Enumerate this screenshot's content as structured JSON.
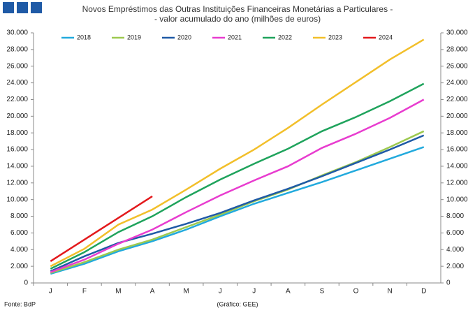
{
  "chart_data": {
    "type": "line",
    "title": "Novos Empréstimos das Outras Instituições Financeiras Monetárias a Particulares -",
    "subtitle": "- valor acumulado do ano (milhões de euros)",
    "categories": [
      "J",
      "F",
      "M",
      "A",
      "M",
      "J",
      "J",
      "A",
      "S",
      "O",
      "N",
      "D"
    ],
    "series": [
      {
        "name": "2018",
        "color": "#22aadd",
        "values": [
          1100,
          2300,
          3800,
          5000,
          6400,
          8000,
          9500,
          10800,
          12100,
          13500,
          14900,
          16300
        ]
      },
      {
        "name": "2019",
        "color": "#9dc94f",
        "values": [
          1200,
          2500,
          4000,
          5200,
          6700,
          8200,
          9800,
          11200,
          12900,
          14500,
          16300,
          18200
        ]
      },
      {
        "name": "2020",
        "color": "#1f5aa6",
        "values": [
          1400,
          3200,
          4800,
          5900,
          7100,
          8400,
          9900,
          11300,
          12800,
          14400,
          16000,
          17700
        ]
      },
      {
        "name": "2021",
        "color": "#e83ccf",
        "values": [
          1300,
          2800,
          4700,
          6400,
          8500,
          10500,
          12300,
          14000,
          16200,
          17900,
          19800,
          22000
        ]
      },
      {
        "name": "2022",
        "color": "#1fa35c",
        "values": [
          1700,
          3700,
          6100,
          8000,
          10300,
          12400,
          14300,
          16100,
          18200,
          19900,
          21800,
          23900
        ]
      },
      {
        "name": "2023",
        "color": "#f2bf2a",
        "values": [
          2000,
          4100,
          7000,
          8800,
          11200,
          13700,
          16000,
          18600,
          21400,
          24100,
          26800,
          29200
        ]
      },
      {
        "name": "2024",
        "color": "#e3191c",
        "values": [
          2600,
          5200,
          7800,
          10400,
          null,
          null,
          null,
          null,
          null,
          null,
          null,
          null
        ]
      }
    ],
    "ylim": [
      0,
      30000
    ],
    "yticks": [
      0,
      {
        "value": 2000,
        "label": "2.000"
      },
      {
        "value": 4000,
        "label": "4.000"
      },
      {
        "value": 6000,
        "label": "6.000"
      },
      {
        "value": 8000,
        "label": "8.000"
      },
      {
        "value": 10000,
        "label": "10.000"
      },
      {
        "value": 12000,
        "label": "12.000"
      },
      {
        "value": 14000,
        "label": "14.000"
      },
      {
        "value": 16000,
        "label": "16.000"
      },
      {
        "value": 18000,
        "label": "18.000"
      },
      {
        "value": 20000,
        "label": "20.000"
      },
      {
        "value": 22000,
        "label": "22.000"
      },
      {
        "value": 24000,
        "label": "24.000"
      },
      {
        "value": 26000,
        "label": "26.000"
      },
      {
        "value": 28000,
        "label": "28.000"
      },
      {
        "value": 30000,
        "label": "30.000"
      }
    ],
    "y2lim": [
      0,
      30000
    ],
    "y2ticks": [
      0,
      {
        "value": 2000,
        "label": "2.000"
      },
      {
        "value": 4000,
        "label": "4.000"
      },
      {
        "value": 6000,
        "label": "6.000"
      },
      {
        "value": 8000,
        "label": "8.000"
      },
      {
        "value": 10000,
        "label": "10.000"
      },
      {
        "value": 12000,
        "label": "12.000"
      },
      {
        "value": 14000,
        "label": "14.000"
      },
      {
        "value": 16000,
        "label": "16.000"
      },
      {
        "value": 18000,
        "label": "18.000"
      },
      {
        "value": 20000,
        "label": "20.000"
      },
      {
        "value": 22000,
        "label": "22.000"
      },
      {
        "value": 24000,
        "label": "24.000"
      },
      {
        "value": 26000,
        "label": "26.000"
      },
      {
        "value": 28000,
        "label": "28.000"
      },
      {
        "value": 30000,
        "label": "30.000"
      }
    ],
    "legend": "top",
    "source": "Fonte: BdP",
    "credit": "(Gráfico: GEE)"
  }
}
